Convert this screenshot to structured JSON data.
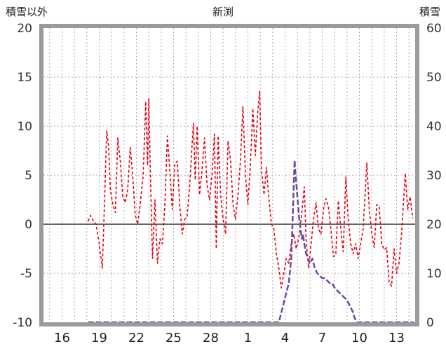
{
  "chart_data": {
    "type": "line",
    "title": "新渕",
    "left_axis": {
      "label": "積雪以外",
      "min": -10,
      "max": 20,
      "ticks": [
        20,
        15,
        10,
        5,
        0,
        -5,
        -10
      ]
    },
    "right_axis": {
      "label": "積雪",
      "min": 0,
      "max": 60,
      "ticks": [
        60,
        50,
        40,
        30,
        20,
        10,
        0
      ]
    },
    "x_axis": {
      "min": 14.5,
      "max": 44.5,
      "tick_positions": [
        16,
        19,
        22,
        25,
        28,
        31,
        34,
        37,
        40,
        43
      ],
      "tick_labels": [
        "16",
        "19",
        "22",
        "25",
        "28",
        "1",
        "4",
        "7",
        "10",
        "13"
      ],
      "grid_interval_days": 1
    },
    "colors": {
      "temperature": "#e60012",
      "snow_depth": "#6b4aa2",
      "frame": "#9a9a9a",
      "grid": "#aaaaaa",
      "zero_line": "#666666",
      "tick_text": "#333333"
    },
    "series": [
      {
        "name": "temperature",
        "axis": "left",
        "color": "#e60012",
        "style": "dashed",
        "points": [
          [
            18.1,
            0.3
          ],
          [
            18.3,
            0.9
          ],
          [
            18.5,
            0.4
          ],
          [
            18.75,
            0.0
          ],
          [
            19.0,
            -2.0
          ],
          [
            19.25,
            -4.5
          ],
          [
            19.45,
            3.0
          ],
          [
            19.6,
            9.5
          ],
          [
            19.75,
            8.0
          ],
          [
            19.9,
            3.5
          ],
          [
            20.1,
            2.0
          ],
          [
            20.3,
            1.2
          ],
          [
            20.5,
            8.8
          ],
          [
            20.7,
            6.5
          ],
          [
            20.9,
            2.8
          ],
          [
            21.1,
            2.2
          ],
          [
            21.3,
            3.5
          ],
          [
            21.5,
            7.8
          ],
          [
            21.7,
            5.0
          ],
          [
            21.9,
            1.0
          ],
          [
            22.1,
            0.0
          ],
          [
            22.3,
            2.0
          ],
          [
            22.55,
            5.0
          ],
          [
            22.75,
            12.5
          ],
          [
            22.9,
            6.0
          ],
          [
            23.0,
            12.8
          ],
          [
            23.15,
            4.0
          ],
          [
            23.3,
            -3.5
          ],
          [
            23.5,
            2.5
          ],
          [
            23.7,
            -4.0
          ],
          [
            23.9,
            -1.5
          ],
          [
            24.1,
            -2.0
          ],
          [
            24.3,
            2.0
          ],
          [
            24.5,
            9.0
          ],
          [
            24.7,
            5.5
          ],
          [
            24.9,
            1.5
          ],
          [
            25.1,
            6.2
          ],
          [
            25.3,
            6.4
          ],
          [
            25.5,
            2.0
          ],
          [
            25.7,
            -1.0
          ],
          [
            25.9,
            0.5
          ],
          [
            26.1,
            0.8
          ],
          [
            26.3,
            4.0
          ],
          [
            26.6,
            10.3
          ],
          [
            26.75,
            4.5
          ],
          [
            26.9,
            10.0
          ],
          [
            27.1,
            3.0
          ],
          [
            27.3,
            5.5
          ],
          [
            27.5,
            8.8
          ],
          [
            27.7,
            4.0
          ],
          [
            27.9,
            2.5
          ],
          [
            28.1,
            5.0
          ],
          [
            28.3,
            9.2
          ],
          [
            28.45,
            -2.5
          ],
          [
            28.6,
            9.0
          ],
          [
            28.8,
            3.0
          ],
          [
            29.0,
            0.5
          ],
          [
            29.2,
            -1.0
          ],
          [
            29.4,
            8.5
          ],
          [
            29.6,
            6.5
          ],
          [
            29.8,
            2.0
          ],
          [
            30.0,
            0.5
          ],
          [
            30.2,
            3.0
          ],
          [
            30.4,
            6.5
          ],
          [
            30.6,
            12.0
          ],
          [
            30.8,
            5.0
          ],
          [
            31.0,
            2.0
          ],
          [
            31.2,
            6.0
          ],
          [
            31.4,
            11.8
          ],
          [
            31.6,
            7.0
          ],
          [
            31.8,
            11.5
          ],
          [
            31.95,
            13.6
          ],
          [
            32.1,
            5.5
          ],
          [
            32.3,
            3.0
          ],
          [
            32.5,
            5.8
          ],
          [
            32.7,
            2.5
          ],
          [
            32.9,
            0.0
          ],
          [
            33.1,
            -0.5
          ],
          [
            33.3,
            -3.0
          ],
          [
            33.5,
            -4.5
          ],
          [
            33.7,
            -6.5
          ],
          [
            33.9,
            -5.0
          ],
          [
            34.1,
            -3.5
          ],
          [
            34.3,
            -4.0
          ],
          [
            34.5,
            -2.0
          ],
          [
            34.7,
            -1.0
          ],
          [
            34.9,
            -2.5
          ],
          [
            35.1,
            -1.5
          ],
          [
            35.3,
            0.5
          ],
          [
            35.55,
            3.8
          ],
          [
            35.7,
            -1.5
          ],
          [
            35.9,
            -4.5
          ],
          [
            36.1,
            -2.0
          ],
          [
            36.3,
            0.5
          ],
          [
            36.5,
            2.2
          ],
          [
            36.7,
            -0.5
          ],
          [
            36.9,
            -1.0
          ],
          [
            37.1,
            1.5
          ],
          [
            37.3,
            2.6
          ],
          [
            37.5,
            1.8
          ],
          [
            37.7,
            -0.5
          ],
          [
            37.9,
            -3.3
          ],
          [
            38.1,
            -3.0
          ],
          [
            38.3,
            2.4
          ],
          [
            38.5,
            -0.5
          ],
          [
            38.7,
            -2.8
          ],
          [
            38.9,
            4.8
          ],
          [
            39.1,
            0.5
          ],
          [
            39.3,
            -2.0
          ],
          [
            39.5,
            -3.0
          ],
          [
            39.7,
            -2.0
          ],
          [
            39.9,
            -3.5
          ],
          [
            40.1,
            -2.0
          ],
          [
            40.3,
            -0.5
          ],
          [
            40.6,
            6.3
          ],
          [
            40.8,
            1.5
          ],
          [
            41.0,
            -1.0
          ],
          [
            41.2,
            -2.4
          ],
          [
            41.4,
            2.0
          ],
          [
            41.6,
            1.8
          ],
          [
            41.8,
            -2.0
          ],
          [
            42.0,
            -2.6
          ],
          [
            42.2,
            -2.4
          ],
          [
            42.4,
            -6.0
          ],
          [
            42.6,
            -6.3
          ],
          [
            42.8,
            -2.5
          ],
          [
            43.0,
            -5.0
          ],
          [
            43.2,
            -4.0
          ],
          [
            43.4,
            -1.0
          ],
          [
            43.7,
            5.2
          ],
          [
            43.9,
            1.5
          ],
          [
            44.1,
            2.8
          ],
          [
            44.3,
            0.6
          ]
        ]
      },
      {
        "name": "snow-depth",
        "axis": "right",
        "color": "#6b4aa2",
        "style": "dash-dot",
        "points": [
          [
            18.1,
            0
          ],
          [
            33.5,
            0
          ],
          [
            33.7,
            2
          ],
          [
            33.9,
            4
          ],
          [
            34.1,
            6
          ],
          [
            34.3,
            8
          ],
          [
            34.5,
            13
          ],
          [
            34.6,
            20
          ],
          [
            34.7,
            28
          ],
          [
            34.77,
            33
          ],
          [
            34.85,
            30
          ],
          [
            34.95,
            27
          ],
          [
            35.05,
            24
          ],
          [
            35.15,
            21
          ],
          [
            35.25,
            19
          ],
          [
            35.35,
            17
          ],
          [
            35.45,
            18
          ],
          [
            35.55,
            16
          ],
          [
            35.7,
            14
          ],
          [
            35.85,
            13
          ],
          [
            36.0,
            12
          ],
          [
            36.2,
            13
          ],
          [
            36.4,
            11
          ],
          [
            36.6,
            10
          ],
          [
            36.8,
            9.5
          ],
          [
            37.0,
            9
          ],
          [
            37.2,
            9
          ],
          [
            37.4,
            8.5
          ],
          [
            37.6,
            8
          ],
          [
            37.8,
            8
          ],
          [
            38.0,
            7
          ],
          [
            38.2,
            6.5
          ],
          [
            38.4,
            6
          ],
          [
            38.6,
            5.5
          ],
          [
            38.8,
            5
          ],
          [
            39.0,
            4.5
          ],
          [
            39.1,
            4
          ],
          [
            39.2,
            3.5
          ],
          [
            39.3,
            3
          ],
          [
            39.4,
            2.5
          ],
          [
            39.5,
            2
          ],
          [
            39.6,
            1
          ],
          [
            39.7,
            0.5
          ],
          [
            39.8,
            0
          ],
          [
            44.4,
            0
          ]
        ]
      }
    ]
  }
}
